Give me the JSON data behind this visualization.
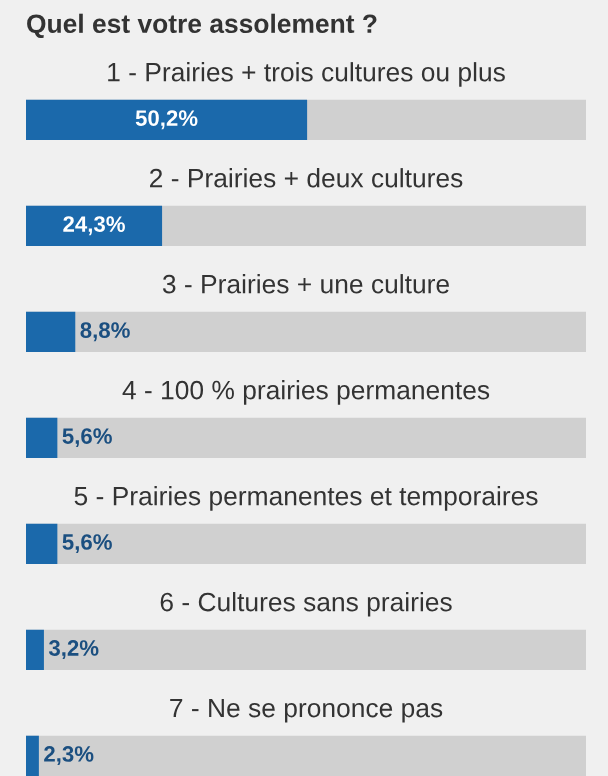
{
  "chart_data": {
    "type": "bar",
    "orientation": "horizontal",
    "title": "Quel est votre assolement ?",
    "categories": [
      "1 - Prairies + trois cultures ou plus",
      "2 - Prairies + deux cultures",
      "3 - Prairies + une culture",
      "4 - 100 % prairies permanentes",
      "5 - Prairies permanentes et temporaires",
      "6 - Cultures sans prairies",
      "7 - Ne se prononce pas"
    ],
    "values": [
      50.2,
      24.3,
      8.8,
      5.6,
      5.6,
      3.2,
      2.3
    ],
    "value_labels": [
      "50,2%",
      "24,3%",
      "8,8%",
      "5,6%",
      "5,6%",
      "3,2%",
      "2,3%"
    ],
    "color": "#1b69ab",
    "xlim": [
      0,
      100
    ]
  }
}
